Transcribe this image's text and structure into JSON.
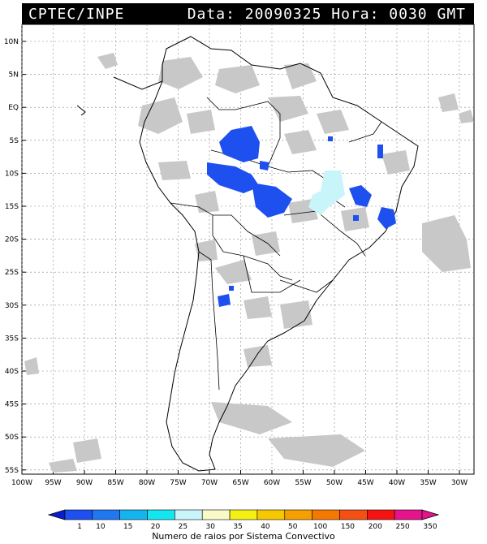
{
  "header": {
    "source": "CPTEC/INPE",
    "datetime": "Data: 20090325 Hora: 0030 GMT"
  },
  "map": {
    "lat_labels": [
      "10N",
      "5N",
      "EQ",
      "5S",
      "10S",
      "15S",
      "20S",
      "25S",
      "30S",
      "35S",
      "40S",
      "45S",
      "50S",
      "55S"
    ],
    "lon_labels": [
      "100W",
      "95W",
      "90W",
      "85W",
      "80W",
      "75W",
      "70W",
      "65W",
      "60W",
      "55W",
      "50W",
      "45W",
      "40W",
      "35W",
      "30W"
    ],
    "cloud_color": "#c8c8c8",
    "lightning_color": "#1e50f0",
    "cyan_area_color": "#c8f5fa"
  },
  "legend": {
    "title": "Numero de raios por Sistema Convectivo",
    "labels": [
      "1",
      "10",
      "15",
      "20",
      "25",
      "30",
      "35",
      "40",
      "50",
      "100",
      "150",
      "200",
      "250",
      "350"
    ],
    "colors": [
      "#0a1ecd",
      "#1e50f0",
      "#1e78f0",
      "#14b4f0",
      "#14e6f0",
      "#c8f5fa",
      "#fafac8",
      "#f5f014",
      "#f5c800",
      "#f5a000",
      "#f57800",
      "#f55014",
      "#f51414",
      "#e6148c"
    ]
  }
}
